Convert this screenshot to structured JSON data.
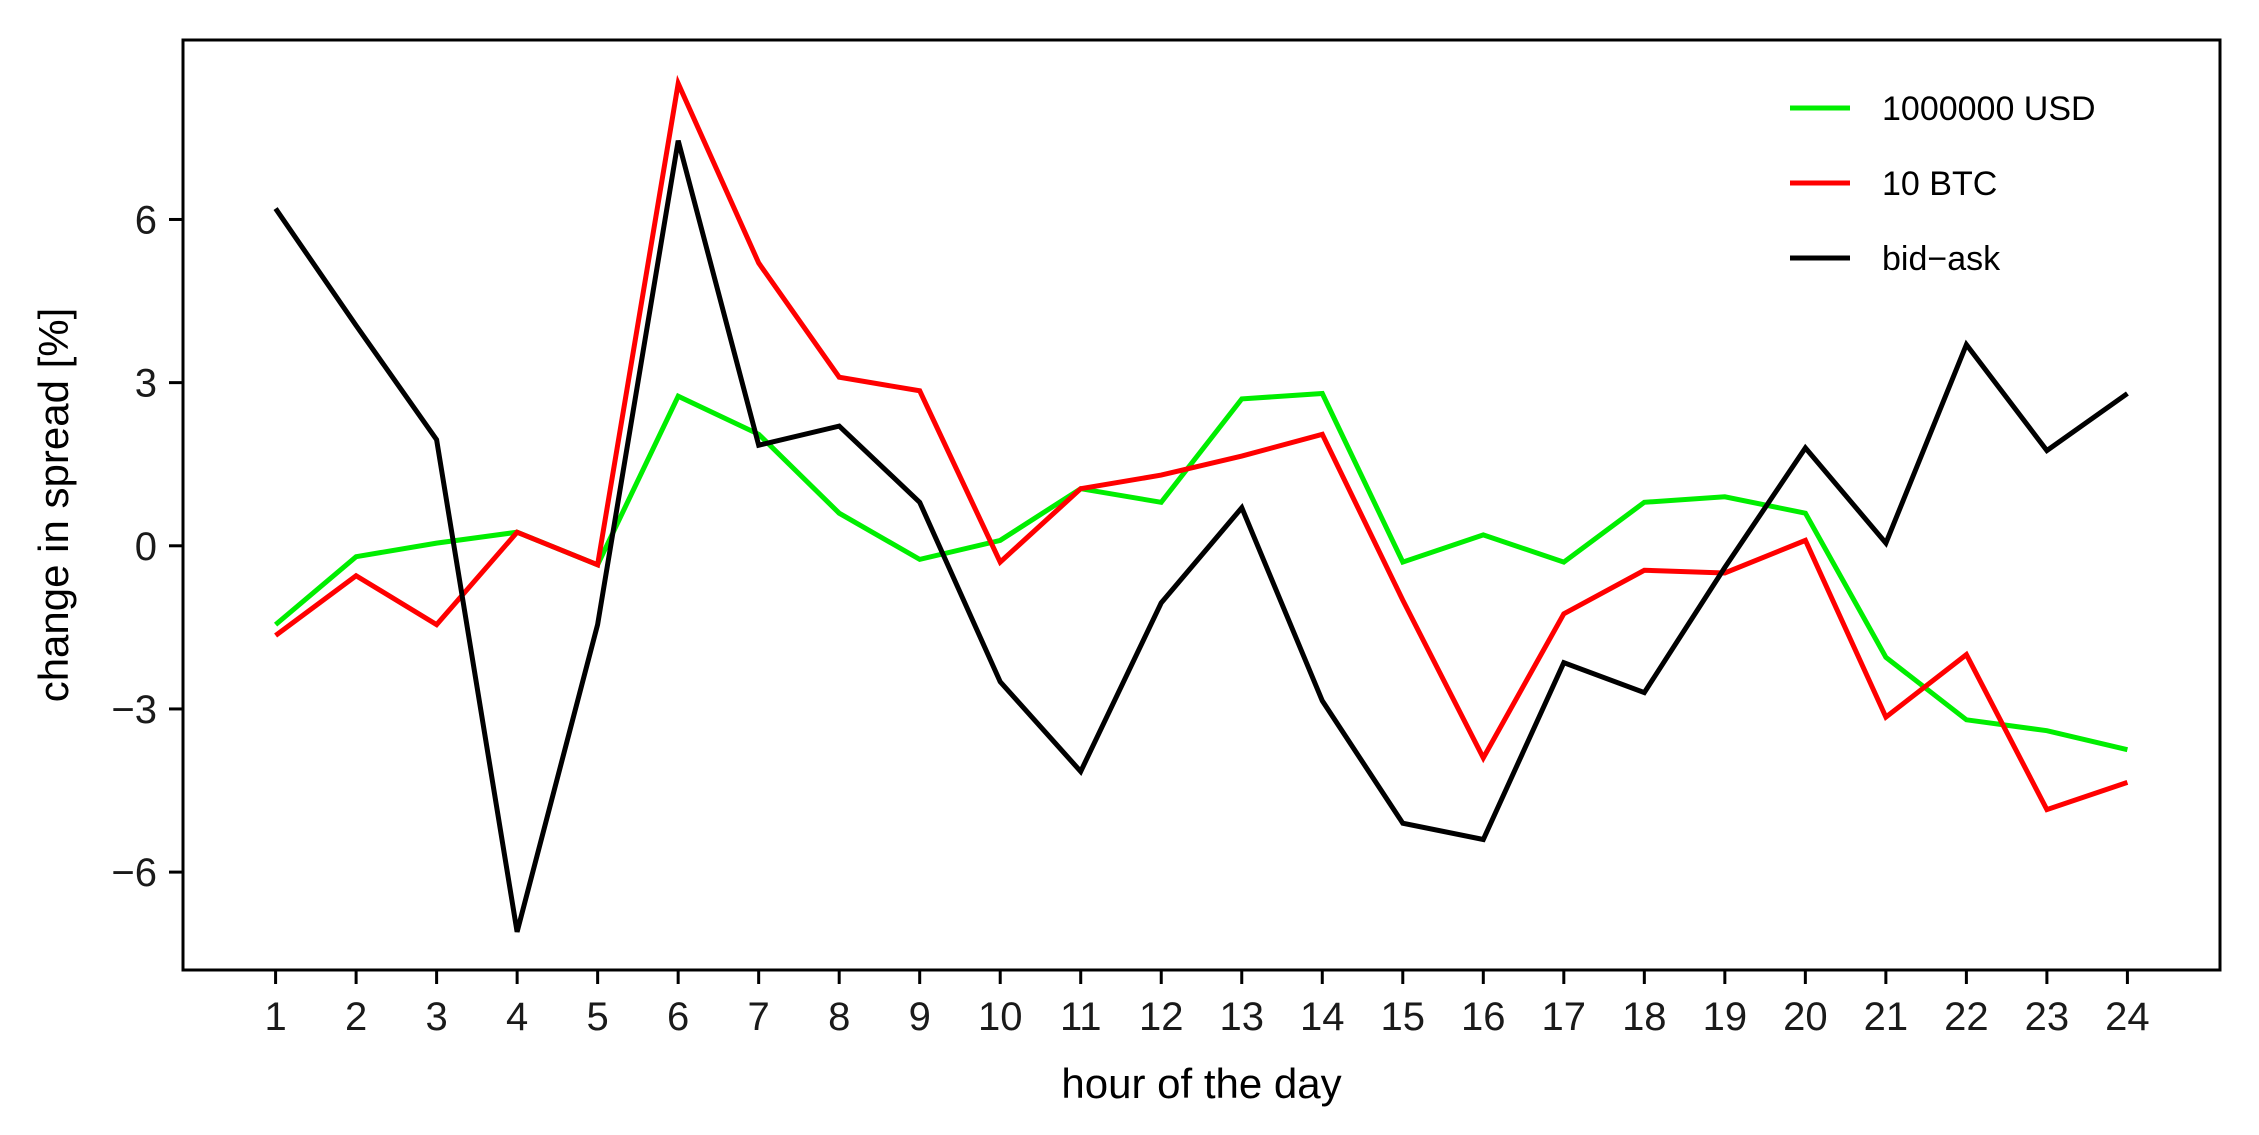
{
  "chart_data": {
    "type": "line",
    "title": "",
    "xlabel": "hour of the day",
    "ylabel": "change in spread [%]",
    "categories": [
      "1",
      "2",
      "3",
      "4",
      "5",
      "6",
      "7",
      "8",
      "9",
      "10",
      "11",
      "12",
      "13",
      "14",
      "15",
      "16",
      "17",
      "18",
      "19",
      "20",
      "21",
      "22",
      "23",
      "24"
    ],
    "xlim": [
      -0.15,
      25.15
    ],
    "ylim": [
      -7.8,
      9.3
    ],
    "yticks": [
      -6,
      -3,
      0,
      3,
      6
    ],
    "ytick_labels": [
      "−6",
      "−3",
      "0",
      "3",
      "6"
    ],
    "grid": false,
    "legend_position": "top-right",
    "series": [
      {
        "name": "1000000 USD",
        "color": "#00ee00",
        "values": [
          -1.45,
          -0.2,
          0.05,
          0.25,
          -0.35,
          2.75,
          2.05,
          0.6,
          -0.25,
          0.1,
          1.05,
          0.8,
          2.7,
          2.8,
          -0.3,
          0.2,
          -0.3,
          0.8,
          0.9,
          0.6,
          -2.05,
          -3.2,
          -3.4,
          -3.75
        ]
      },
      {
        "name": "10 BTC",
        "color": "#ff0000",
        "values": [
          -1.65,
          -0.55,
          -1.45,
          0.25,
          -0.35,
          8.5,
          5.2,
          3.1,
          2.85,
          -0.3,
          1.05,
          1.3,
          1.65,
          2.05,
          -1.0,
          -3.9,
          -1.25,
          -0.45,
          -0.5,
          0.1,
          -3.15,
          -2.0,
          -4.85,
          -4.35
        ]
      },
      {
        "name": "bid−ask",
        "color": "#000000",
        "values": [
          6.2,
          4.05,
          1.95,
          -7.1,
          -1.45,
          7.45,
          1.85,
          2.2,
          0.8,
          -2.5,
          -4.15,
          -1.05,
          0.7,
          -2.85,
          -5.1,
          -5.4,
          -2.15,
          -2.7,
          -0.4,
          1.8,
          0.05,
          3.7,
          1.75,
          2.8
        ]
      }
    ]
  }
}
